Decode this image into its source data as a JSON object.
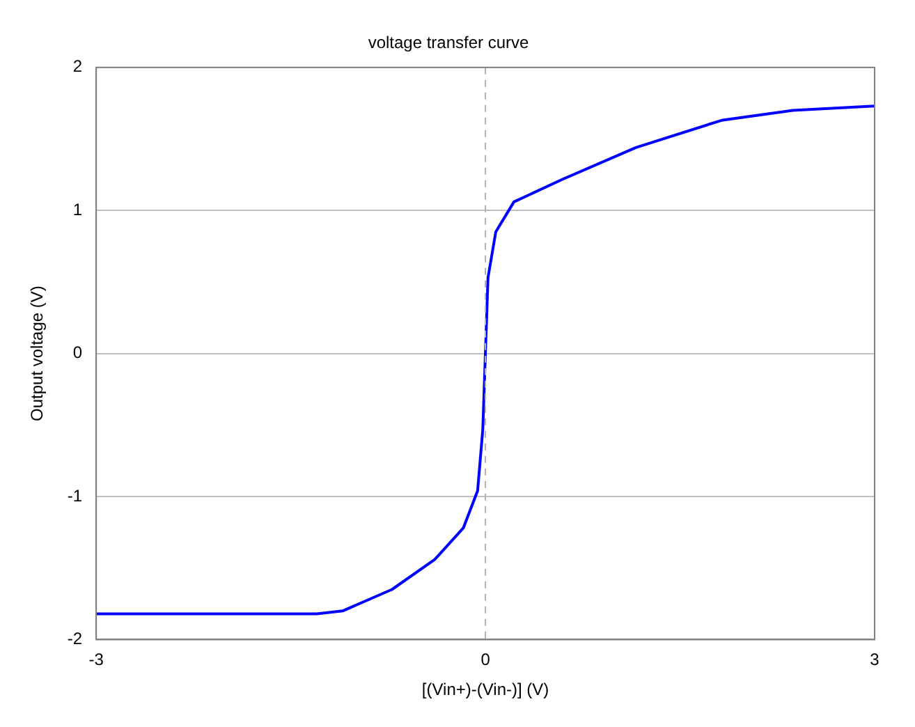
{
  "chart_data": {
    "type": "line",
    "title": "voltage transfer curve",
    "xlabel": "[(Vin+)-(Vin-)] (V)",
    "ylabel": "Output voltage (V)",
    "x": [
      -3,
      -2,
      -1.3,
      -1.1,
      -0.72,
      -0.39,
      -0.17,
      -0.06,
      -0.02,
      0,
      0.02,
      0.08,
      0.22,
      0.6,
      1.16,
      1.82,
      2.37,
      3
    ],
    "series": [
      {
        "color": "#0000ff",
        "values": [
          -1.82,
          -1.82,
          -1.82,
          -1.8,
          -1.65,
          -1.44,
          -1.22,
          -0.96,
          -0.53,
          0,
          0.53,
          0.85,
          1.06,
          1.22,
          1.44,
          1.63,
          1.7,
          1.73
        ]
      }
    ],
    "xlim": [
      -3,
      3
    ],
    "xticks": [
      -3,
      0,
      3
    ],
    "ylim": [
      -2,
      2
    ],
    "yticks": [
      -2,
      -1,
      0,
      1,
      2
    ],
    "grid": "y",
    "legend": false,
    "marker": "none",
    "line_style": "solid",
    "ref_lines": [
      {
        "axis": "x",
        "value": 0,
        "color": "#b0b0b0",
        "line_style": "dashed"
      }
    ]
  }
}
